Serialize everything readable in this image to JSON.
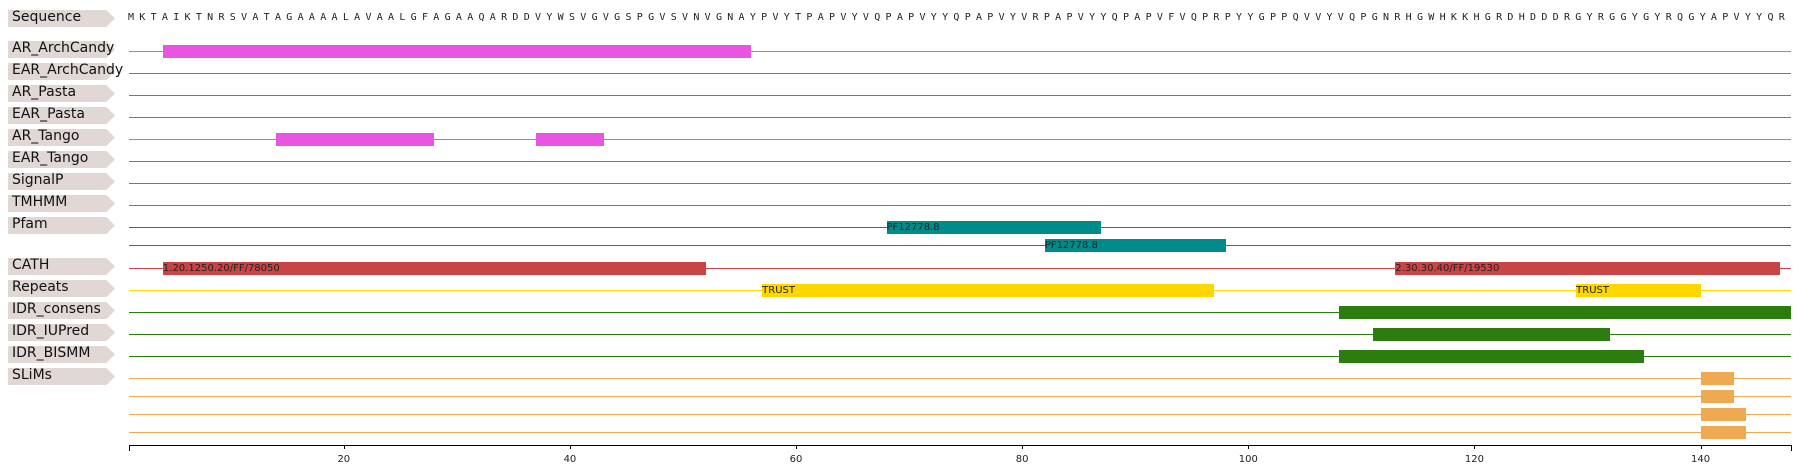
{
  "sequence_label": "Sequence",
  "sequence": "MKTAIKTNRSVATAGAAAALAVAALGFAGAAQARDDVYWSVGVGSPGVSVNVGNAYPVYTPAPVYVQPAPVYYQPAPVYVRPAPVYYQPAPVFVQPRPYYGPPQVVYVQPGNRHGWHKKHGRDHDDDRGYRGGYGYRQGYAPVYYQR",
  "chart_data": {
    "type": "feature-track",
    "x_range": [
      1,
      148
    ],
    "x_ticks": [
      20,
      40,
      60,
      80,
      100,
      120,
      140
    ],
    "tracks": [
      {
        "label": "AR_ArchCandy",
        "color": "#e855e3",
        "lines": [
          [
            {
              "start": 4,
              "end": 56,
              "text": ""
            }
          ]
        ]
      },
      {
        "label": "EAR_ArchCandy",
        "color": "#777777",
        "lines": [
          []
        ]
      },
      {
        "label": "AR_Pasta",
        "color": "#777777",
        "lines": [
          []
        ]
      },
      {
        "label": "EAR_Pasta",
        "color": "#777777",
        "lines": [
          []
        ]
      },
      {
        "label": "AR_Tango",
        "color": "#e855e3",
        "lines": [
          [
            {
              "start": 14,
              "end": 28,
              "text": ""
            },
            {
              "start": 37,
              "end": 43,
              "text": ""
            }
          ]
        ]
      },
      {
        "label": "EAR_Tango",
        "color": "#777777",
        "lines": [
          []
        ]
      },
      {
        "label": "SignalP",
        "color": "#777777",
        "lines": [
          []
        ]
      },
      {
        "label": "TMHMM",
        "color": "#777777",
        "lines": [
          []
        ]
      },
      {
        "label": "Pfam",
        "color": "#008b8b",
        "lines": [
          [
            {
              "start": 68,
              "end": 87,
              "text": "PF12778.8"
            }
          ],
          [
            {
              "start": 82,
              "end": 98,
              "text": "PF12778.8"
            }
          ]
        ]
      },
      {
        "label": "CATH",
        "color": "#c94444",
        "lines": [
          [
            {
              "start": 4,
              "end": 52,
              "text": "1.20.1250.20/FF/78050"
            },
            {
              "start": 113,
              "end": 147,
              "text": "2.30.30.40/FF/19530"
            }
          ]
        ]
      },
      {
        "label": "Repeats",
        "color": "#ffd700",
        "lines": [
          [
            {
              "start": 57,
              "end": 97,
              "text": "TRUST"
            },
            {
              "start": 129,
              "end": 140,
              "text": "TRUST"
            }
          ]
        ]
      },
      {
        "label": "IDR_consens",
        "color": "#2d7c0f",
        "lines": [
          [
            {
              "start": 108,
              "end": 148,
              "text": ""
            }
          ]
        ]
      },
      {
        "label": "IDR_IUPred",
        "color": "#2d7c0f",
        "lines": [
          [
            {
              "start": 111,
              "end": 132,
              "text": ""
            }
          ]
        ]
      },
      {
        "label": "IDR_BISMM",
        "color": "#2d7c0f",
        "lines": [
          [
            {
              "start": 108,
              "end": 135,
              "text": ""
            }
          ]
        ]
      },
      {
        "label": "SLiMs",
        "color": "#efa953",
        "lines": [
          [
            {
              "start": 140,
              "end": 143,
              "text": ""
            }
          ],
          [
            {
              "start": 140,
              "end": 143,
              "text": ""
            }
          ],
          [
            {
              "start": 140,
              "end": 144,
              "text": ""
            }
          ],
          [
            {
              "start": 140,
              "end": 144,
              "text": ""
            }
          ]
        ]
      }
    ]
  }
}
